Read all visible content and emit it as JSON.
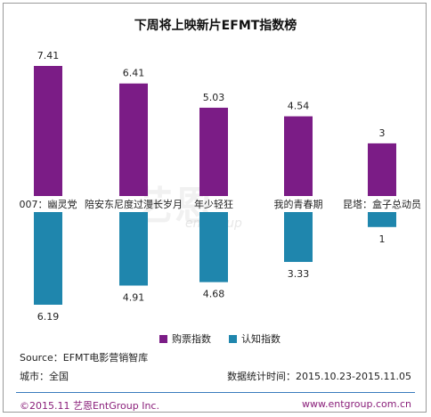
{
  "chart_data": {
    "type": "bar",
    "title": "下周将上映新片EFMT指数榜",
    "categories": [
      "007：幽灵党",
      "陪安东尼度过漫长岁月",
      "年少轻狂",
      "我的青春期",
      "昆塔：盒子总动员"
    ],
    "series": [
      {
        "name": "购票指数",
        "values": [
          7.41,
          6.41,
          5.03,
          4.54,
          3
        ],
        "color": "#7b1c86",
        "direction": "up"
      },
      {
        "name": "认知指数",
        "values": [
          6.19,
          4.91,
          4.68,
          3.33,
          1
        ],
        "color": "#1f86ad",
        "direction": "down"
      }
    ],
    "value_labels_up": [
      "7.41",
      "6.41",
      "5.03",
      "4.54",
      "3"
    ],
    "value_labels_down": [
      "6.19",
      "4.91",
      "4.68",
      "3.33",
      "1"
    ],
    "ylim": [
      0,
      7.41
    ],
    "grid": false,
    "legend_position": "bottom"
  },
  "watermark": {
    "main": "艺恩",
    "sub": "entgroup"
  },
  "notes": {
    "source": "Source：EFMT电影营销智库",
    "city": "城市：全国",
    "period": "数据统计时间：2015.10.23-2015.11.05"
  },
  "footer": {
    "left": "©2015.11 艺恩EntGroup Inc.",
    "right": "www.entgroup.com.cn"
  },
  "colors": {
    "purchase": "#7b1c86",
    "awareness": "#1f86ad",
    "footer_text": "#8a1f7a",
    "footer_line": "#3a7bbd"
  }
}
